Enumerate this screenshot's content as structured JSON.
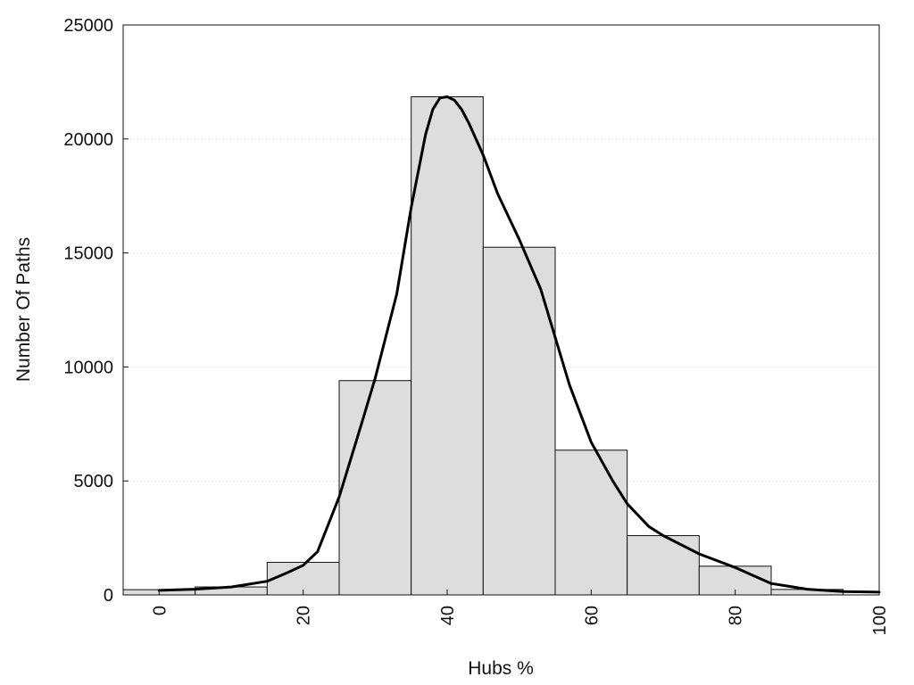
{
  "chart_data": {
    "type": "bar",
    "title": "",
    "xlabel": "Hubs %",
    "ylabel": "Number Of Paths",
    "xlim": [
      -5,
      100
    ],
    "ylim": [
      0,
      25000
    ],
    "grid": true,
    "legend": "none",
    "bar_width": 10,
    "x_ticks": [
      0,
      20,
      40,
      60,
      80,
      100
    ],
    "y_ticks": [
      0,
      5000,
      10000,
      15000,
      20000,
      25000
    ],
    "x_tick_labels": [
      "0",
      "20",
      "40",
      "60",
      "80",
      "100"
    ],
    "y_tick_labels": [
      "0",
      "5000",
      "10000",
      "15000",
      "20000",
      "25000"
    ],
    "bins": [
      0,
      10,
      20,
      30,
      40,
      50,
      60,
      70,
      80,
      90
    ],
    "values": [
      230,
      350,
      1430,
      9400,
      21850,
      15250,
      6350,
      2600,
      1260,
      240
    ],
    "curve": {
      "x": [
        0,
        5,
        10,
        15,
        18,
        20,
        22,
        25,
        28,
        30,
        33,
        35,
        37,
        38,
        39,
        40,
        41,
        42,
        43,
        45,
        47,
        50,
        53,
        55,
        57,
        60,
        63,
        65,
        68,
        70,
        75,
        80,
        85,
        90,
        95,
        100
      ],
      "y": [
        200,
        250,
        350,
        600,
        1000,
        1300,
        1900,
        4300,
        7400,
        9500,
        13200,
        17000,
        20200,
        21300,
        21800,
        21850,
        21700,
        21300,
        20700,
        19300,
        17600,
        15600,
        13400,
        11300,
        9200,
        6700,
        5000,
        4000,
        3000,
        2600,
        1800,
        1200,
        500,
        250,
        150,
        120
      ]
    },
    "colors": {
      "bar_fill": "#dddddd",
      "bar_stroke": "#111111",
      "curve": "#000000",
      "grid": "#cfcfcf"
    }
  }
}
